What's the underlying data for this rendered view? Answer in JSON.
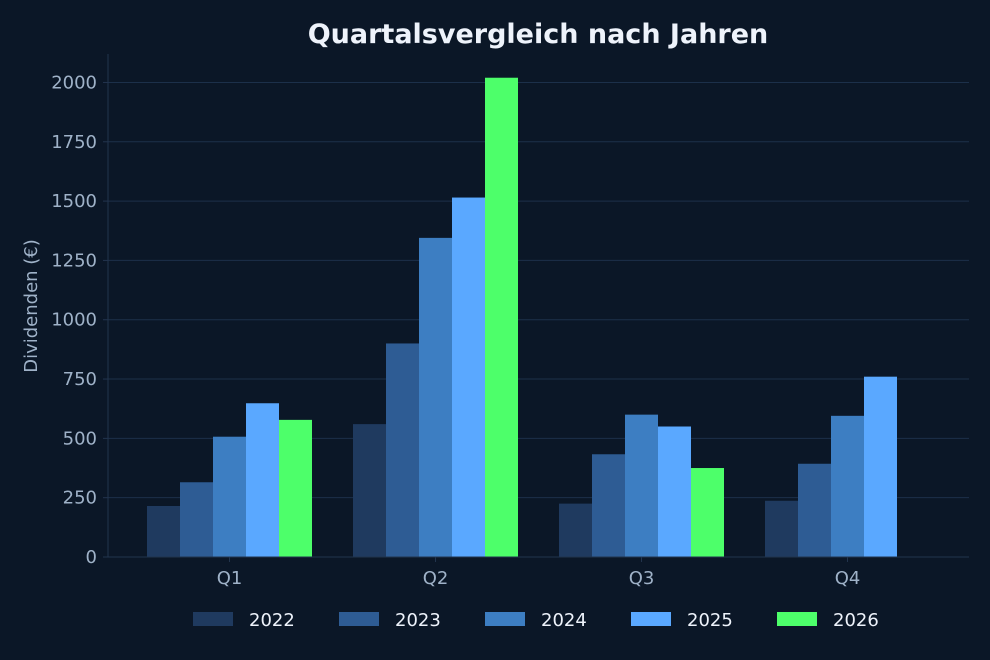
{
  "chart_data": {
    "type": "bar",
    "title": "Quartalsvergleich nach Jahren",
    "xlabel": "",
    "ylabel": "Dividenden (€)",
    "categories": [
      "Q1",
      "Q2",
      "Q3",
      "Q4"
    ],
    "yticks": [
      0,
      250,
      500,
      750,
      1000,
      1250,
      1500,
      1750,
      2000
    ],
    "ylim": [
      0,
      2120
    ],
    "grid": true,
    "legend_position": "bottom",
    "series": [
      {
        "name": "2022",
        "color": "#1f3a5f",
        "values": [
          215,
          560,
          225,
          237
        ]
      },
      {
        "name": "2023",
        "color": "#2e5c94",
        "values": [
          315,
          900,
          433,
          393
        ]
      },
      {
        "name": "2024",
        "color": "#3d7ec2",
        "values": [
          507,
          1345,
          600,
          595
        ]
      },
      {
        "name": "2025",
        "color": "#5aa8ff",
        "values": [
          648,
          1515,
          550,
          760
        ]
      },
      {
        "name": "2026",
        "color": "#4dff6a",
        "values": [
          578,
          2020,
          375,
          null
        ]
      }
    ],
    "colors": {
      "background": "#0b1727",
      "grid": "#1c304a",
      "axis": "#22344d",
      "text": "#9fb2c8",
      "title": "#eef3fb"
    }
  }
}
